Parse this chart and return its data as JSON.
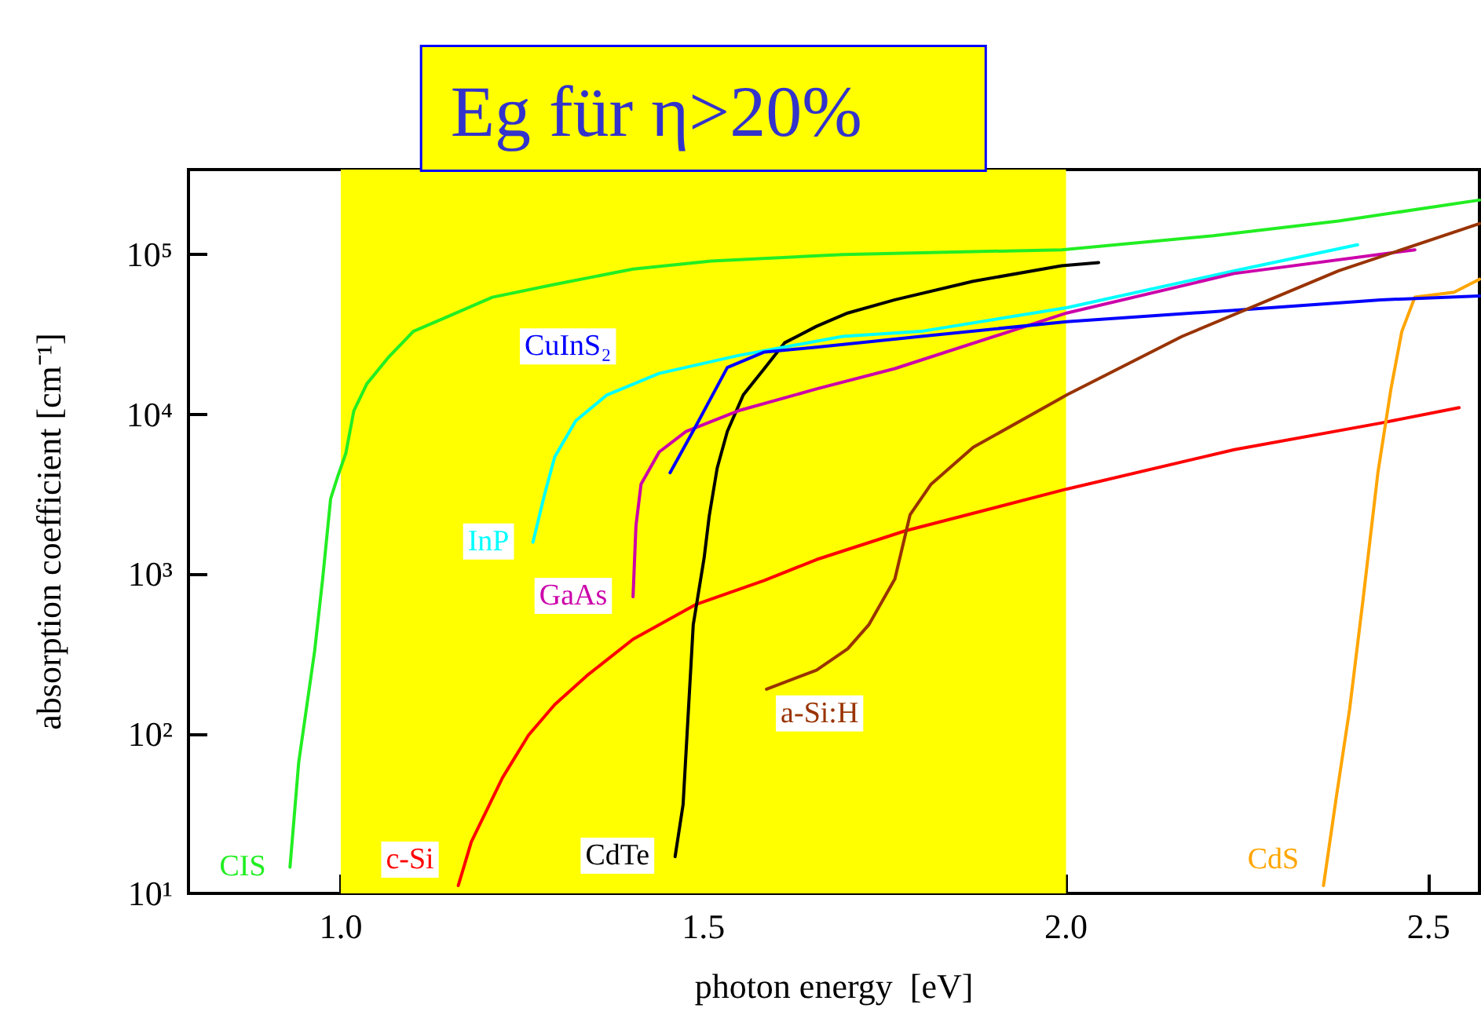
{
  "chart_data": {
    "type": "line",
    "xlabel": "photon energy  [eV]",
    "ylabel": "absorption coefficient [cm⁻¹]",
    "log": "y",
    "grid": false,
    "legend": false,
    "marker": "none",
    "line_style": "solid",
    "xlim": [
      0.79,
      2.57
    ],
    "xticks": [
      {
        "value": 1,
        "label": "1.0"
      },
      {
        "value": 1.5,
        "label": "1.5"
      },
      {
        "value": 2,
        "label": "2.0"
      },
      {
        "value": 2.5,
        "label": "2.5"
      }
    ],
    "ylim": [
      10,
      340000
    ],
    "yticks": [
      {
        "value": 10,
        "label": "10¹"
      },
      {
        "value": 100,
        "label": "10²"
      },
      {
        "value": 1000,
        "label": "10³"
      },
      {
        "value": 10000,
        "label": "10⁴"
      },
      {
        "value": 100000,
        "label": "10⁵"
      }
    ],
    "bands": [
      {
        "axis": "x",
        "from": 1.0,
        "to": 2.0,
        "label": "Eg für η>20%",
        "color": "#ffff00"
      }
    ],
    "series": [
      {
        "name": "CIS",
        "color": "#22ee22",
        "x": [
          0.93,
          0.942,
          0.964,
          0.975,
          0.986,
          0.996,
          1.007,
          1.018,
          1.036,
          1.065,
          1.1,
          1.151,
          1.209,
          1.295,
          1.403,
          1.511,
          1.692,
          1.994,
          2.203,
          2.376,
          2.57
        ],
        "values": [
          14.6,
          66,
          330,
          930,
          2950,
          4100,
          5700,
          10500,
          15500,
          22500,
          33000,
          41500,
          54000,
          65000,
          81000,
          91000,
          100000,
          107000,
          131000,
          162000,
          219000
        ]
      },
      {
        "name": "c-Si",
        "color": "#ff0000",
        "x": [
          1.162,
          1.18,
          1.223,
          1.259,
          1.295,
          1.339,
          1.403,
          1.49,
          1.584,
          1.656,
          1.778,
          2.001,
          2.232,
          2.434,
          2.542
        ],
        "values": [
          11.2,
          21,
          53,
          98,
          152,
          230,
          390,
          645,
          910,
          1230,
          1860,
          3400,
          6000,
          8800,
          11000
        ]
      },
      {
        "name": "CdTe",
        "color": "#000000",
        "x": [
          1.461,
          1.472,
          1.486,
          1.501,
          1.508,
          1.519,
          1.533,
          1.555,
          1.584,
          1.612,
          1.656,
          1.699,
          1.764,
          1.872,
          1.994,
          2.045
        ],
        "values": [
          17,
          36,
          480,
          1260,
          2300,
          4600,
          7800,
          13200,
          19300,
          28000,
          35500,
          43000,
          52000,
          68000,
          85000,
          89000
        ]
      },
      {
        "name": "CdS",
        "color": "#ffa500",
        "x": [
          2.355,
          2.373,
          2.391,
          2.409,
          2.43,
          2.448,
          2.463,
          2.481,
          2.535,
          2.57
        ],
        "values": [
          11.2,
          41,
          142,
          660,
          4300,
          14400,
          33000,
          54000,
          58000,
          70000
        ]
      },
      {
        "name": "InP",
        "color": "#00ffff",
        "x": [
          1.265,
          1.281,
          1.295,
          1.324,
          1.367,
          1.439,
          1.548,
          1.692,
          1.8,
          2.002,
          2.232,
          2.402
        ],
        "values": [
          1580,
          3150,
          5400,
          9100,
          13200,
          18000,
          23300,
          30700,
          33000,
          46500,
          79000,
          115000
        ]
      },
      {
        "name": "GaAs",
        "color": "#cc00aa",
        "x": [
          1.403,
          1.407,
          1.414,
          1.439,
          1.476,
          1.548,
          1.656,
          1.764,
          2.001,
          2.232,
          2.481
        ],
        "values": [
          720,
          2000,
          3650,
          5800,
          7800,
          10500,
          14400,
          19300,
          43000,
          76000,
          107000
        ]
      },
      {
        "name": "CuInS₂",
        "color": "#0000ff",
        "x": [
          1.454,
          1.49,
          1.533,
          1.584,
          1.656,
          1.8,
          2.001,
          2.232,
          2.434,
          2.57
        ],
        "values": [
          4300,
          8500,
          19600,
          24500,
          26300,
          30700,
          38000,
          44700,
          52000,
          55000
        ]
      },
      {
        "name": "a-Si:H",
        "color": "#993300",
        "x": [
          1.587,
          1.656,
          1.699,
          1.728,
          1.764,
          1.785,
          1.814,
          1.872,
          2.001,
          2.16,
          2.376,
          2.57
        ],
        "values": [
          190,
          250,
          340,
          480,
          930,
          2350,
          3650,
          6200,
          13200,
          30700,
          79000,
          156000
        ]
      }
    ]
  }
}
